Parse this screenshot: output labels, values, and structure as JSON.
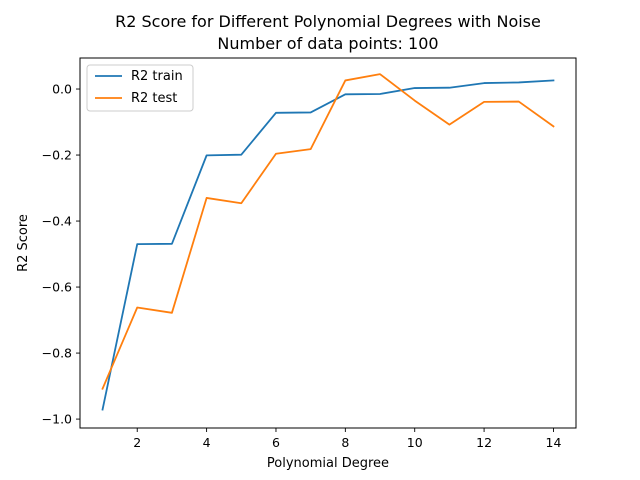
{
  "chart_data": {
    "type": "line",
    "title": "R2 Score for Different Polynomial Degrees with Noise",
    "subtitle": "Number of data points: 100",
    "xlabel": "Polynomial Degree",
    "ylabel": "R2 Score",
    "xlim": [
      0.35,
      14.65
    ],
    "ylim": [
      -1.027,
      0.094
    ],
    "x_ticks": [
      2,
      4,
      6,
      8,
      10,
      12,
      14
    ],
    "x_tick_labels": [
      "2",
      "4",
      "6",
      "8",
      "10",
      "12",
      "14"
    ],
    "y_ticks": [
      -1.0,
      -0.8,
      -0.6,
      -0.4,
      -0.2,
      0.0
    ],
    "y_tick_labels": [
      "−1.0",
      "−0.8",
      "−0.6",
      "−0.4",
      "−0.2",
      "0.0"
    ],
    "grid": false,
    "legend_position": "top-left",
    "x": [
      1,
      2,
      3,
      4,
      5,
      6,
      7,
      8,
      9,
      10,
      11,
      12,
      13,
      14
    ],
    "series": [
      {
        "name": "R2 train",
        "color": "#1f77b4",
        "values": [
          -0.971,
          -0.47,
          -0.469,
          -0.201,
          -0.199,
          -0.072,
          -0.071,
          -0.016,
          -0.015,
          0.003,
          0.004,
          0.018,
          0.02,
          0.026
        ]
      },
      {
        "name": "R2 test",
        "color": "#ff7f0e",
        "values": [
          -0.908,
          -0.662,
          -0.678,
          -0.33,
          -0.346,
          -0.196,
          -0.182,
          0.026,
          0.045,
          -0.035,
          -0.108,
          -0.039,
          -0.038,
          -0.113
        ]
      }
    ]
  }
}
